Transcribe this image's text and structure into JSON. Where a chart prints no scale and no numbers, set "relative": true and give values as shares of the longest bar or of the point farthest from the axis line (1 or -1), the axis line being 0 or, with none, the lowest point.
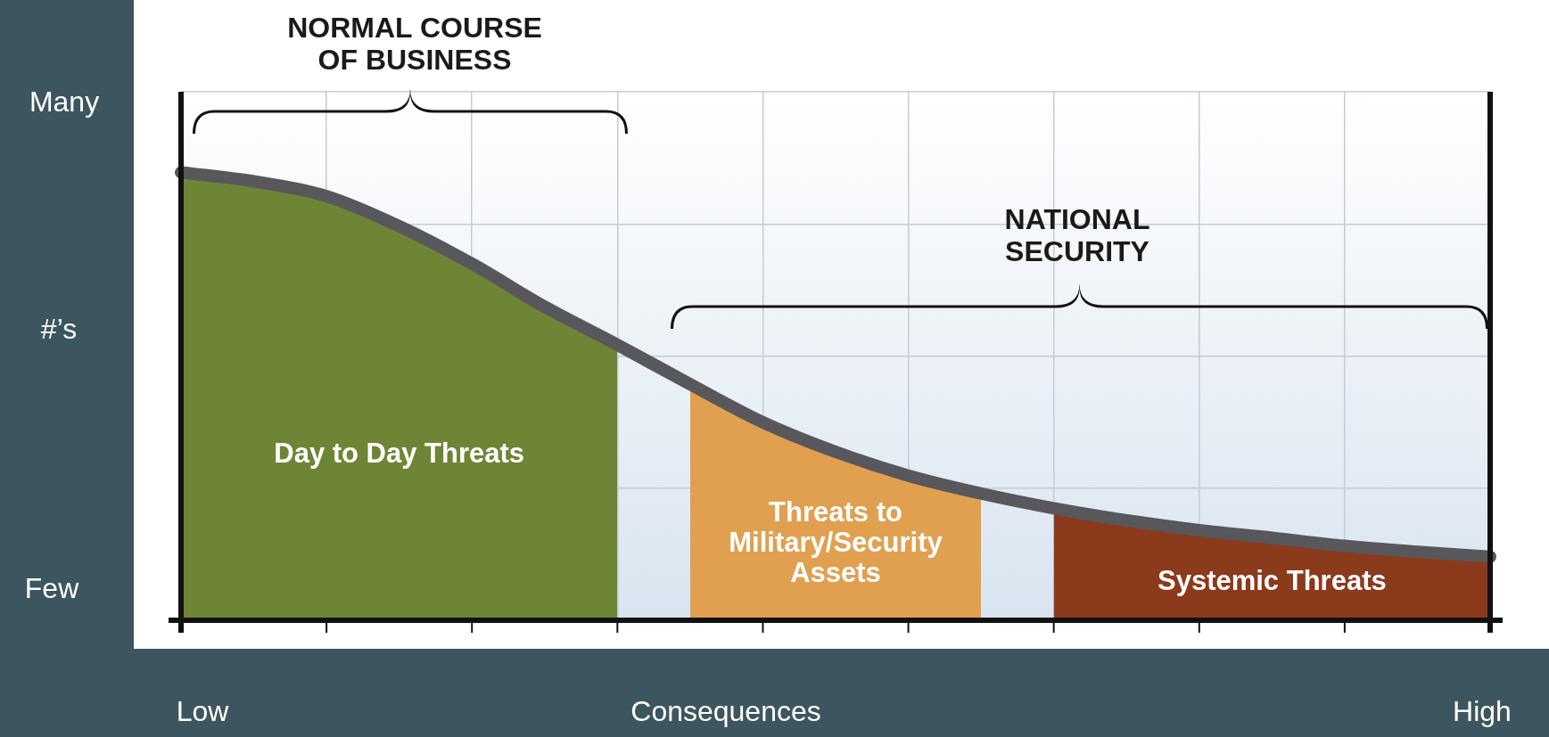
{
  "chart_data": {
    "type": "area",
    "relative": true,
    "grid": true,
    "categories": [
      null,
      null,
      null,
      null,
      null,
      null,
      null,
      null,
      null,
      null,
      null,
      null,
      null,
      null,
      null,
      null,
      null,
      null,
      null
    ],
    "series": [
      {
        "name": "Day to Day Threats",
        "color": "#6e8535",
        "values": [
          1.0,
          0.98,
          0.947,
          0.88,
          0.796,
          0.7,
          0.615,
          null,
          null,
          null,
          null,
          null,
          null,
          null,
          null,
          null,
          null,
          null,
          null
        ]
      },
      {
        "name": "Threats to Military/Security Assets",
        "color": "#e0a050",
        "values": [
          null,
          null,
          null,
          null,
          null,
          null,
          null,
          0.527,
          0.442,
          0.376,
          0.323,
          0.283,
          null,
          null,
          null,
          null,
          null,
          null,
          null
        ]
      },
      {
        "name": "Systemic Threats",
        "color": "#8b3a1c",
        "values": [
          null,
          null,
          null,
          null,
          null,
          null,
          null,
          null,
          null,
          null,
          null,
          null,
          0.25,
          0.223,
          0.201,
          0.184,
          0.166,
          0.153,
          0.142
        ]
      },
      {
        "type": "line",
        "color": "#58585c",
        "values": [
          1.0,
          0.98,
          0.947,
          0.88,
          0.796,
          0.7,
          0.615,
          0.527,
          0.442,
          0.376,
          0.323,
          0.283,
          0.25,
          0.223,
          0.201,
          0.184,
          0.166,
          0.153,
          0.142
        ]
      }
    ],
    "xlabel": "Consequences",
    "ylabel": "#’s",
    "annotations": [
      "Many",
      "Few",
      "Low",
      "High",
      "NORMAL COURSE OF BUSINESS",
      "NATIONAL SECURITY"
    ]
  }
}
